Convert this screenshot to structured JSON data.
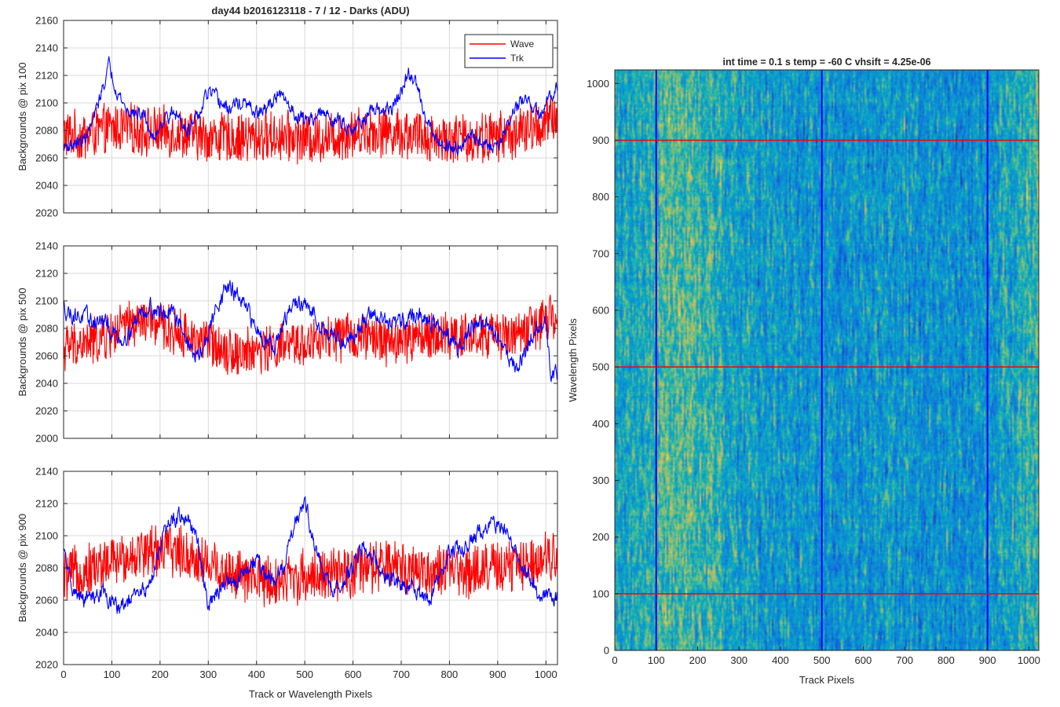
{
  "colors": {
    "wave": "#ff0000",
    "trk": "#0000ff",
    "axis": "#262626",
    "grid": "#d9d9d9"
  },
  "chart_data": [
    {
      "id": "p100",
      "type": "line",
      "title": "day44 b2016123118 - 7 / 12 - Darks (ADU)",
      "xlabel": "",
      "ylabel": "Backgrounds @ pix 100",
      "xlim": [
        0,
        1024
      ],
      "ylim": [
        2020,
        2160
      ],
      "xticks": [
        0,
        100,
        200,
        300,
        400,
        500,
        600,
        700,
        800,
        900,
        1000
      ],
      "yticks": [
        2020,
        2040,
        2060,
        2080,
        2100,
        2120,
        2140,
        2160
      ],
      "show_xtick_labels": false,
      "grid": true,
      "legend": {
        "placement": "top-right",
        "entries": [
          "Wave",
          "Trk"
        ]
      },
      "series": [
        {
          "name": "Wave",
          "color": "#ff0000",
          "x": [
            0,
            40,
            80,
            120,
            160,
            200,
            240,
            280,
            320,
            360,
            400,
            440,
            480,
            520,
            560,
            600,
            640,
            680,
            720,
            760,
            800,
            840,
            880,
            920,
            960,
            1000,
            1023
          ],
          "values": [
            2078,
            2075,
            2080,
            2082,
            2080,
            2079,
            2078,
            2076,
            2075,
            2074,
            2075,
            2076,
            2075,
            2074,
            2076,
            2078,
            2080,
            2079,
            2077,
            2075,
            2074,
            2074,
            2075,
            2077,
            2080,
            2085,
            2090
          ],
          "noise": 17
        },
        {
          "name": "Trk",
          "color": "#0000ff",
          "x": [
            0,
            20,
            40,
            60,
            80,
            95,
            110,
            130,
            150,
            170,
            185,
            200,
            220,
            240,
            260,
            280,
            300,
            320,
            340,
            360,
            380,
            400,
            420,
            440,
            460,
            480,
            500,
            520,
            540,
            560,
            580,
            600,
            620,
            640,
            660,
            680,
            700,
            715,
            730,
            750,
            770,
            790,
            810,
            830,
            850,
            870,
            890,
            910,
            930,
            950,
            970,
            990,
            1010,
            1023
          ],
          "values": [
            2068,
            2070,
            2072,
            2085,
            2110,
            2128,
            2110,
            2095,
            2092,
            2090,
            2072,
            2085,
            2092,
            2090,
            2080,
            2090,
            2108,
            2102,
            2095,
            2100,
            2098,
            2092,
            2095,
            2105,
            2102,
            2092,
            2088,
            2090,
            2092,
            2088,
            2085,
            2082,
            2088,
            2092,
            2095,
            2095,
            2108,
            2120,
            2115,
            2092,
            2075,
            2070,
            2068,
            2072,
            2075,
            2070,
            2068,
            2075,
            2092,
            2102,
            2098,
            2090,
            2105,
            2115
          ],
          "noise": 4
        }
      ]
    },
    {
      "id": "p500",
      "type": "line",
      "title": "",
      "xlabel": "",
      "ylabel": "Backgrounds @ pix 500",
      "xlim": [
        0,
        1024
      ],
      "ylim": [
        2000,
        2140
      ],
      "xticks": [
        0,
        100,
        200,
        300,
        400,
        500,
        600,
        700,
        800,
        900,
        1000
      ],
      "yticks": [
        2000,
        2020,
        2040,
        2060,
        2080,
        2100,
        2120,
        2140
      ],
      "show_xtick_labels": false,
      "grid": true,
      "series": [
        {
          "name": "Wave",
          "color": "#ff0000",
          "x": [
            0,
            40,
            80,
            120,
            160,
            200,
            240,
            280,
            320,
            360,
            400,
            440,
            480,
            520,
            560,
            600,
            640,
            680,
            720,
            760,
            800,
            840,
            880,
            920,
            960,
            1000,
            1023
          ],
          "values": [
            2066,
            2068,
            2072,
            2080,
            2085,
            2082,
            2076,
            2072,
            2068,
            2062,
            2064,
            2066,
            2068,
            2070,
            2072,
            2074,
            2072,
            2070,
            2072,
            2074,
            2075,
            2075,
            2074,
            2075,
            2078,
            2085,
            2088
          ],
          "noise": 16
        },
        {
          "name": "Trk",
          "color": "#0000ff",
          "x": [
            0,
            20,
            40,
            60,
            80,
            100,
            120,
            140,
            160,
            180,
            200,
            220,
            240,
            260,
            280,
            300,
            320,
            340,
            360,
            380,
            400,
            420,
            440,
            460,
            480,
            500,
            520,
            540,
            560,
            580,
            600,
            620,
            640,
            660,
            680,
            700,
            720,
            740,
            760,
            780,
            800,
            820,
            840,
            860,
            880,
            900,
            920,
            940,
            960,
            980,
            1000,
            1010,
            1023
          ],
          "values": [
            2095,
            2090,
            2088,
            2085,
            2085,
            2078,
            2072,
            2080,
            2092,
            2096,
            2092,
            2090,
            2088,
            2066,
            2058,
            2075,
            2100,
            2110,
            2104,
            2092,
            2080,
            2072,
            2068,
            2085,
            2100,
            2095,
            2090,
            2080,
            2075,
            2070,
            2075,
            2085,
            2090,
            2088,
            2080,
            2085,
            2090,
            2088,
            2085,
            2080,
            2070,
            2068,
            2078,
            2085,
            2080,
            2075,
            2062,
            2050,
            2065,
            2080,
            2080,
            2050,
            2048
          ],
          "noise": 5
        }
      ]
    },
    {
      "id": "p900",
      "type": "line",
      "title": "",
      "xlabel": "Track or Wavelength Pixels",
      "ylabel": "Backgrounds @ pix 900",
      "xlim": [
        0,
        1024
      ],
      "ylim": [
        2020,
        2140
      ],
      "xticks": [
        0,
        100,
        200,
        300,
        400,
        500,
        600,
        700,
        800,
        900,
        1000
      ],
      "yticks": [
        2020,
        2040,
        2060,
        2080,
        2100,
        2120,
        2140
      ],
      "show_xtick_labels": true,
      "grid": true,
      "series": [
        {
          "name": "Wave",
          "color": "#ff0000",
          "x": [
            0,
            40,
            80,
            120,
            160,
            200,
            240,
            280,
            320,
            360,
            400,
            440,
            480,
            520,
            560,
            600,
            640,
            680,
            720,
            760,
            800,
            840,
            880,
            920,
            960,
            1000,
            1023
          ],
          "values": [
            2075,
            2078,
            2082,
            2085,
            2090,
            2092,
            2090,
            2085,
            2080,
            2075,
            2072,
            2072,
            2074,
            2076,
            2075,
            2077,
            2080,
            2082,
            2080,
            2078,
            2077,
            2078,
            2080,
            2080,
            2083,
            2088,
            2090
          ],
          "noise": 15
        },
        {
          "name": "Trk",
          "color": "#0000ff",
          "x": [
            0,
            20,
            40,
            60,
            80,
            100,
            120,
            140,
            160,
            180,
            200,
            220,
            240,
            260,
            280,
            300,
            320,
            340,
            360,
            380,
            400,
            420,
            440,
            460,
            480,
            500,
            520,
            540,
            560,
            580,
            600,
            620,
            640,
            660,
            680,
            700,
            720,
            740,
            760,
            780,
            800,
            820,
            840,
            860,
            880,
            900,
            920,
            940,
            960,
            980,
            1000,
            1023
          ],
          "values": [
            2090,
            2065,
            2060,
            2062,
            2065,
            2058,
            2055,
            2060,
            2065,
            2070,
            2095,
            2108,
            2112,
            2110,
            2092,
            2058,
            2065,
            2070,
            2072,
            2080,
            2085,
            2075,
            2070,
            2085,
            2110,
            2122,
            2095,
            2075,
            2065,
            2070,
            2082,
            2095,
            2088,
            2078,
            2072,
            2068,
            2070,
            2065,
            2060,
            2075,
            2090,
            2092,
            2095,
            2102,
            2108,
            2106,
            2102,
            2090,
            2078,
            2065,
            2062,
            2062
          ],
          "noise": 4
        }
      ]
    },
    {
      "id": "img",
      "type": "heatmap",
      "title": "int time = 0.1 s   temp = -60 C   vhsift = 4.25e-06",
      "xlabel": "Track Pixels",
      "ylabel": "Wavelength Pixels",
      "xlim": [
        0,
        1024
      ],
      "ylim": [
        0,
        1024
      ],
      "xticks": [
        0,
        100,
        200,
        300,
        400,
        500,
        600,
        700,
        800,
        900,
        1000
      ],
      "yticks": [
        0,
        100,
        200,
        300,
        400,
        500,
        600,
        700,
        800,
        900,
        1000
      ],
      "colormap": "parula",
      "grid": false,
      "vertical_markers": {
        "values": [
          100,
          500,
          900
        ],
        "color": "#0000ff"
      },
      "horizontal_markers": {
        "values": [
          100,
          500,
          900
        ],
        "color": "#ff0000"
      },
      "column_trend": {
        "x": [
          0,
          40,
          80,
          120,
          160,
          200,
          260,
          320,
          400,
          480,
          560,
          640,
          720,
          800,
          880,
          960,
          1000,
          1024
        ],
        "values": [
          0.48,
          0.5,
          0.55,
          0.6,
          0.63,
          0.58,
          0.52,
          0.46,
          0.42,
          0.4,
          0.42,
          0.43,
          0.42,
          0.4,
          0.4,
          0.5,
          0.58,
          0.6
        ]
      }
    }
  ]
}
